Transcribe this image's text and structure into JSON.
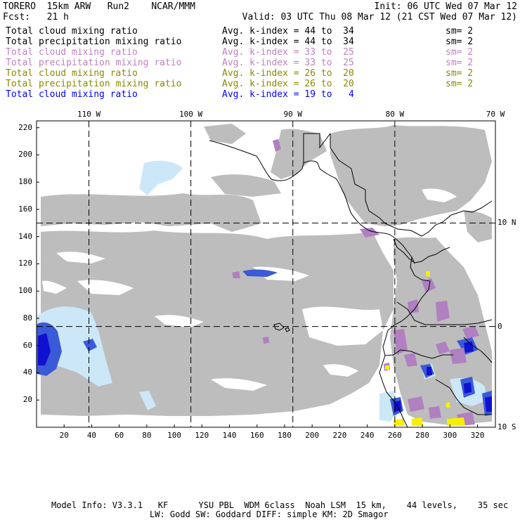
{
  "header": {
    "model": "TORERO  15km ARW   Run2    NCAR/MMM",
    "init": "Init: 06 UTC Wed 07 Mar 12",
    "fcst": "Fcst:   21 h",
    "valid": "Valid: 03 UTC Thu 08 Mar 12 (21 CST Wed 07 Mar 12)"
  },
  "legend": [
    {
      "name": "Total cloud mixing ratio",
      "kidx": "Avg. k-index = ",
      "range": "44 to  34",
      "sm": "sm= 2",
      "color": "#000000"
    },
    {
      "name": "Total precipitation mixing ratio",
      "kidx": "Avg. k-index = ",
      "range": "44 to  34",
      "sm": "sm= 2",
      "color": "#000000"
    },
    {
      "name": "Total cloud mixing ratio",
      "kidx": "Avg. k-index = ",
      "range": "33 to  25",
      "sm": "sm= 2",
      "color": "#c080c0"
    },
    {
      "name": "Total precipitation mixing ratio",
      "kidx": "Avg. k-index = ",
      "range": "33 to  25",
      "sm": "sm= 2",
      "color": "#c080c0"
    },
    {
      "name": "Total cloud mixing ratio",
      "kidx": "Avg. k-index = ",
      "range": "26 to  20",
      "sm": "sm= 2",
      "color": "#8a8a00"
    },
    {
      "name": "Total precipitation mixing ratio",
      "kidx": "Avg. k-index = ",
      "range": "26 to  20",
      "sm": "sm= 2",
      "color": "#8a8a00"
    },
    {
      "name": "Total cloud mixing ratio",
      "kidx": "Avg. k-index = ",
      "range": "19 to   4",
      "sm": "",
      "color": "#0000ff"
    }
  ],
  "footer": {
    "line1": "Model Info: V3.3.1   KF      YSU PBL  WDM 6class  Noah LSM  15 km,    44 levels,    35 sec",
    "line2": "LW: Godd SW: Goddard DIFF: simple KM: 2D Smagor"
  },
  "colors": {
    "cloud_gray": "#bdbdbd",
    "cloud_light_blue": "#cce8f8",
    "cloud_blue": "#3a5ad8",
    "cloud_dark_blue": "#1010d0",
    "purple": "#b080c0",
    "yellow": "#f5f000",
    "coastline": "#000000"
  },
  "chart_data": {
    "type": "heatmap",
    "title": "",
    "xlabel": "",
    "ylabel": "",
    "x_grid_ticks": [
      "20",
      "40",
      "60",
      "80",
      "100",
      "120",
      "140",
      "160",
      "180",
      "200",
      "220",
      "240",
      "260",
      "280",
      "300",
      "320"
    ],
    "y_grid_ticks": [
      "20",
      "40",
      "60",
      "80",
      "100",
      "120",
      "140",
      "160",
      "180",
      "200",
      "220"
    ],
    "xlim": [
      0,
      333
    ],
    "ylim": [
      0,
      225
    ],
    "longitude_labels": [
      "110 W",
      "100 W",
      "90 W",
      "80 W",
      "70 W"
    ],
    "latitude_labels": [
      "10 N",
      "0",
      "10 S"
    ],
    "graticule_lon_x": [
      38,
      112,
      186,
      260
    ],
    "graticule_lat_y": [
      74,
      150
    ],
    "grid": true
  }
}
